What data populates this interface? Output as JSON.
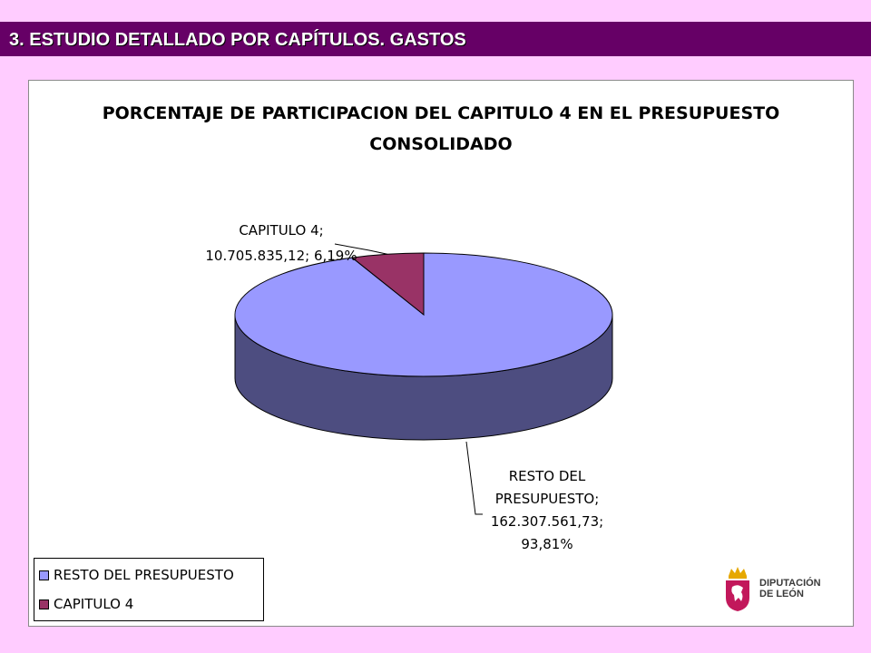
{
  "header": {
    "title": "3. ESTUDIO DETALLADO POR CAPÍTULOS. GASTOS"
  },
  "chart_data": {
    "type": "pie",
    "style": "3d",
    "title_lines": [
      "PORCENTAJE DE PARTICIPACION DEL CAPITULO 4 EN EL PRESUPUESTO",
      "CONSOLIDADO"
    ],
    "slices": [
      {
        "name": "RESTO DEL PRESUPUESTO",
        "value": 162307561.73,
        "percent": 93.81,
        "color": "#9999ff",
        "side_color": "#4d4d80",
        "label_lines": [
          "RESTO DEL",
          "PRESUPUESTO;",
          "162.307.561,73;",
          "93,81%"
        ]
      },
      {
        "name": "CAPITULO 4",
        "value": 10705835.12,
        "percent": 6.19,
        "color": "#993366",
        "side_color": "#4d1a33",
        "label_lines": [
          "CAPITULO 4;",
          "10.705.835,12; 6,19%"
        ]
      }
    ],
    "legend": {
      "placement": "bottom-left",
      "entries": [
        "RESTO DEL PRESUPUESTO",
        "CAPITULO 4"
      ]
    }
  },
  "logo": {
    "line1": "DIPUTACIÓN",
    "line2": "DE LEÓN",
    "icon": "coat-of-arms-icon"
  }
}
